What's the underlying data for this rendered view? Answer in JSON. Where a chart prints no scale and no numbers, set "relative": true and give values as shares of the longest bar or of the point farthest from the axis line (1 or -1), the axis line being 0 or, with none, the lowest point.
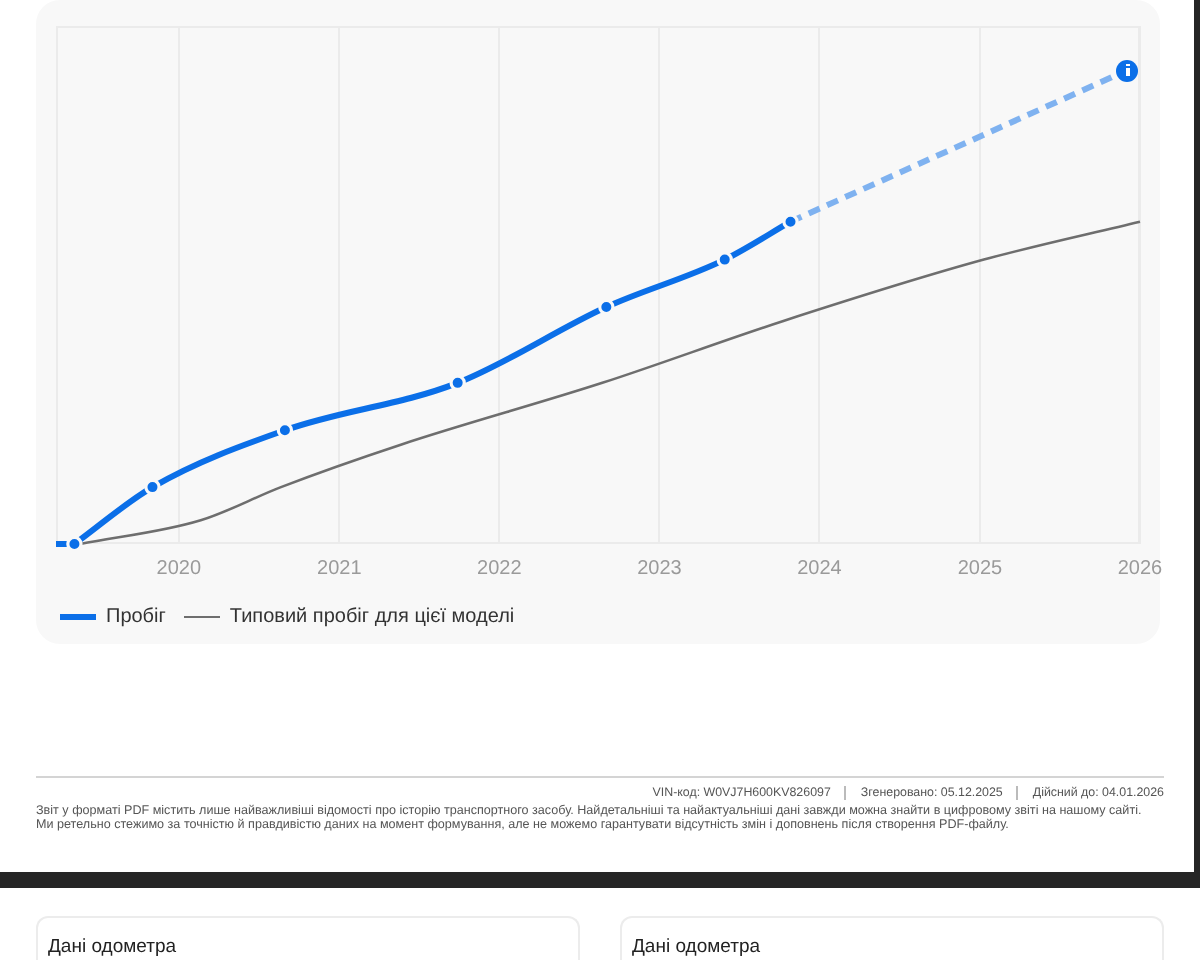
{
  "chart_data": {
    "type": "line",
    "relative": true,
    "grid": "x",
    "legend": "bottom left",
    "xlim": [
      "2019-03-27",
      "2026-01-01"
    ],
    "xticks": [
      "2020",
      "2021",
      "2022",
      "2023",
      "2024",
      "2025",
      "2026"
    ],
    "series": [
      {
        "name": "Пробіг",
        "color": "#0b6fe8",
        "line_style": "solid",
        "marker": "circle",
        "x": [
          "2019-05-08",
          "2019-11-02",
          "2020-08-30",
          "2021-09-28",
          "2022-09-02",
          "2023-05-30",
          "2023-10-27"
        ],
        "values": [
          0,
          0.12,
          0.24,
          0.34,
          0.5,
          0.6,
          0.68
        ]
      },
      {
        "color": "#0b6fe8",
        "line_style": "solid",
        "marker": "none",
        "x": [
          "2019-03-27",
          "2019-05-08"
        ],
        "values": [
          0,
          0
        ]
      },
      {
        "color": "#7fb2f0",
        "line_style": "dashed",
        "x": [
          "2023-10-27",
          "2025-12-04"
        ],
        "values": [
          0.68,
          1
        ]
      },
      {
        "name": "Типовий пробіг для цієї моделі",
        "color": "#6e6e6e",
        "line_style": "solid",
        "marker": "none",
        "x": [
          "2019-05-21",
          "2020-02-20",
          "2020-08-21",
          "2021-05-23",
          "2022-08-24",
          "2023-10-09",
          "2025-01-10",
          "2026-01-01"
        ],
        "values": [
          0,
          0.05,
          0.12,
          0.21,
          0.34,
          0.47,
          0.6,
          0.68
        ]
      }
    ],
    "annotations": [
      "VIN-код: W0VJ7H600KV826097",
      "Згенеровано: 05.12.2025",
      "Дійсний до: 04.01.2026",
      "Звіт у форматі PDF містить лише найважливіші відомості про історію транспортного засобу. Найдетальніші та найактуальніші дані завжди можна знайти в цифровому звіті на нашому сайті. Ми ретельно стежимо за точністю й правдивістю даних на момент формування, але не можемо гарантувати відсутність змін і доповнень після створення PDF-файлу.",
      "Дані одометра",
      "Дані одометра"
    ]
  }
}
